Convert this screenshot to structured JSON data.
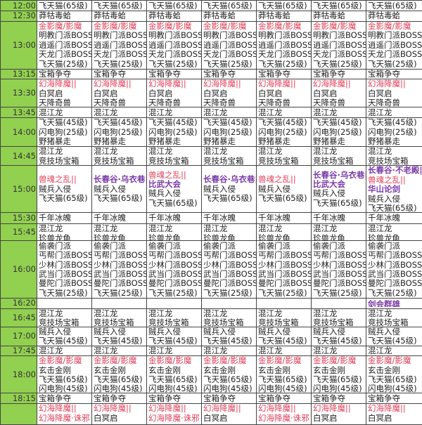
{
  "colors": {
    "time_column": "#92d050",
    "red": "#e0405a",
    "purple": "#7a3aa8"
  },
  "rows": [
    {
      "time": "12:00",
      "cells": [
        [
          "飞天猫(65级)"
        ],
        [
          "飞天猫(65级)"
        ],
        [
          "飞天猫(65级)"
        ],
        [
          "飞天猫(65级)"
        ],
        [
          "飞天猫(65级)"
        ],
        [
          "飞天猫(65级)"
        ],
        [
          "飞天猫(65级)"
        ]
      ]
    },
    {
      "time": "12:30",
      "cells": [
        [
          "莽牯毒蛤"
        ],
        [
          "莽牯毒蛤"
        ],
        [
          "莽牯毒蛤"
        ],
        [
          "莽牯毒蛤"
        ],
        [
          "莽牯毒蛤"
        ],
        [
          "莽牯毒蛤"
        ],
        [
          "莽牯毒蛤"
        ]
      ]
    },
    {
      "time": "13:00",
      "cells": [
        [
          {
            "t": "金影魔/影魔",
            "c": "red"
          },
          "明教门派BOSS",
          "逍遥门派BOSS",
          "天龙门派BOSS",
          "飞天猫(25级)"
        ],
        [
          {
            "t": "金影魔/影魔",
            "c": "red"
          },
          "明教门派BOSS",
          "逍遥门派BOSS",
          "天龙门派BOSS",
          "飞天猫(25级)"
        ],
        [
          {
            "t": "金影魔/影魔",
            "c": "red"
          },
          "明教门派BOSS",
          "逍遥门派BOSS",
          "天龙门派BOSS",
          "飞天猫(25级)"
        ],
        [
          {
            "t": "金影魔/影魔",
            "c": "red"
          },
          "明教门派BOSS",
          "逍遥门派BOSS",
          "天龙门派BOSS",
          "飞天猫(25级)"
        ],
        [
          {
            "t": "金影魔/影魔",
            "c": "red"
          },
          "明教门派BOSS",
          "逍遥门派BOSS",
          "天龙门派BOSS",
          "飞天猫(25级)"
        ],
        [
          {
            "t": "金影魔/影魔",
            "c": "red"
          },
          "明教门派BOSS",
          "逍遥门派BOSS",
          "天龙门派BOSS",
          "飞天猫(25级)"
        ],
        [
          {
            "t": "金影魔/影魔",
            "c": "red"
          },
          "明教门派BOSS",
          "逍遥门派BOSS",
          "天龙门派BOSS",
          "飞天猫(25级)"
        ]
      ]
    },
    {
      "time": "13:15",
      "cells": [
        [
          "宝箱争夺"
        ],
        [
          "宝箱争夺"
        ],
        [
          "宝箱争夺"
        ],
        [
          "宝箱争夺"
        ],
        [
          "宝箱争夺"
        ],
        [
          "宝箱争夺"
        ],
        [
          "宝箱争夺"
        ]
      ]
    },
    {
      "time": "13:30",
      "cells": [
        [
          {
            "t": "幻海降魔||",
            "c": "red"
          },
          "白冥启",
          "天降奇兽"
        ],
        [
          {
            "t": "幻海降魔||",
            "c": "red"
          },
          "白冥启",
          "天降奇兽"
        ],
        [
          {
            "t": "幻海降魔||",
            "c": "red"
          },
          "白冥启",
          "天降奇兽"
        ],
        [
          {
            "t": "幻海降魔||",
            "c": "red"
          },
          "白冥启",
          "天降奇兽"
        ],
        [
          {
            "t": "幻海降魔||",
            "c": "red"
          },
          "白冥启",
          "天降奇兽"
        ],
        [
          {
            "t": "幻海降魔||",
            "c": "red"
          },
          "白冥启",
          "天降奇兽"
        ],
        [
          {
            "t": "幻海降魔||",
            "c": "red"
          },
          "白冥启",
          "天降奇兽"
        ]
      ]
    },
    {
      "time": "13:45",
      "cells": [
        [
          "混江龙"
        ],
        [
          "混江龙"
        ],
        [
          "混江龙"
        ],
        [
          "混江龙"
        ],
        [
          "混江龙"
        ],
        [
          "混江龙"
        ],
        [
          "混江龙"
        ]
      ]
    },
    {
      "time": "14:00",
      "cells": [
        [
          "飞天猫(45级)",
          "闪电狗(25级)",
          "野猪暴走"
        ],
        [
          "飞天猫(45级)",
          "闪电狗(25级)",
          "野猪暴走"
        ],
        [
          "飞天猫(45级)",
          "闪电狗(25级)",
          "野猪暴走"
        ],
        [
          "飞天猫(45级)",
          "闪电狗(25级)",
          "野猪暴走"
        ],
        [
          "飞天猫(45级)",
          "闪电狗(25级)",
          "野猪暴走"
        ],
        [
          "飞天猫(45级)",
          "闪电狗(25级)",
          "野猪暴走"
        ],
        [
          "飞天猫(45级)",
          "闪电狗(25级)",
          "野猪暴走"
        ]
      ]
    },
    {
      "time": "14:45",
      "cells": [
        [
          "混江龙",
          "竞技场宝箱"
        ],
        [
          "混江龙",
          "竞技场宝箱"
        ],
        [
          "混江龙",
          "竞技场宝箱"
        ],
        [
          "混江龙",
          "竞技场宝箱"
        ],
        [
          "混江龙",
          "竞技场宝箱"
        ],
        [
          "混江龙",
          "竞技场宝箱"
        ],
        [
          "混江龙",
          "竞技场宝箱"
        ]
      ]
    },
    {
      "time": "15:00",
      "cells": [
        [
          {
            "t": "兽魂之乱||",
            "c": "red"
          },
          "贼兵入侵",
          "飞天猫(65级)"
        ],
        [
          {
            "t": "长春谷·乌衣巷||",
            "c": "purple"
          },
          "贼兵入侵",
          "飞天猫(65级)"
        ],
        [
          {
            "t": "兽魂之乱||",
            "c": "red"
          },
          {
            "t": "比武大会",
            "c": "purple"
          },
          "贼兵入侵",
          "飞天猫(65级)"
        ],
        [
          {
            "t": "长春谷·乌衣巷||",
            "c": "purple"
          },
          "贼兵入侵",
          "飞天猫(65级)"
        ],
        [
          {
            "t": "兽魂之乱||",
            "c": "red"
          },
          "贼兵入侵",
          "飞天猫(65级)"
        ],
        [
          {
            "t": "长春谷·乌衣巷||",
            "c": "purple"
          },
          {
            "t": "比武大会",
            "c": "purple"
          },
          "贼兵入侵",
          "飞天猫(65级)"
        ],
        [
          {
            "t": "长春谷·不老殿||",
            "c": "purple"
          },
          {
            "t": "兽魂之乱||",
            "c": "red"
          },
          {
            "t": "华山论剑",
            "c": "purple"
          },
          "贼兵入侵",
          "飞天猫(65级)"
        ]
      ]
    },
    {
      "time": "15:30",
      "cells": [
        [
          "千年冰魄"
        ],
        [
          "千年冰魄"
        ],
        [
          "千年冰魄"
        ],
        [
          "千年冰魄"
        ],
        [
          "千年冰魄"
        ],
        [
          "千年冰魄"
        ],
        [
          "千年冰魄"
        ]
      ]
    },
    {
      "time": "15:45",
      "cells": [
        [
          "混江龙",
          "珍兽龙龟"
        ],
        [
          "混江龙",
          "珍兽龙龟"
        ],
        [
          "混江龙",
          "珍兽龙龟"
        ],
        [
          "混江龙",
          "珍兽龙龟"
        ],
        [
          "混江龙",
          "珍兽龙龟"
        ],
        [
          "混江龙",
          "珍兽龙龟"
        ],
        [
          "混江龙",
          "珍兽龙龟"
        ]
      ]
    },
    {
      "time": "16:00",
      "cells": [
        [
          "偷袭门派",
          "丐帮门派BOSS",
          "少林门派BOSS",
          "武当门派BOSS",
          "曼陀门派BOSS",
          "飞天猫(25级)"
        ],
        [
          "偷袭门派",
          "丐帮门派BOSS",
          "少林门派BOSS",
          "武当门派BOSS",
          "曼陀门派BOSS",
          "飞天猫(25级)"
        ],
        [
          "偷袭门派",
          "丐帮门派BOSS",
          "少林门派BOSS",
          "武当门派BOSS",
          "曼陀门派BOSS",
          "飞天猫(25级)"
        ],
        [
          "偷袭门派",
          "丐帮门派BOSS",
          "少林门派BOSS",
          "武当门派BOSS",
          "曼陀门派BOSS",
          "飞天猫(25级)"
        ],
        [
          "偷袭门派",
          "丐帮门派BOSS",
          "少林门派BOSS",
          "武当门派BOSS",
          "曼陀门派BOSS",
          "飞天猫(25级)"
        ],
        [
          "偷袭门派",
          "丐帮门派BOSS",
          "少林门派BOSS",
          "武当门派BOSS",
          "曼陀门派BOSS",
          "飞天猫(25级)"
        ],
        [
          "偷袭门派",
          "丐帮门派BOSS",
          "少林门派BOSS",
          "武当门派BOSS",
          "曼陀门派BOSS",
          "飞天猫(25级)"
        ]
      ]
    },
    {
      "time": "16:20",
      "cells": [
        [],
        [],
        [],
        [],
        [],
        [],
        [
          {
            "t": "剑会群雄",
            "c": "purple"
          }
        ]
      ]
    },
    {
      "time": "16:45",
      "cells": [
        [
          "混江龙",
          "竞技场宝箱"
        ],
        [
          "混江龙",
          "竞技场宝箱"
        ],
        [
          "混江龙",
          "竞技场宝箱"
        ],
        [
          "混江龙",
          "竞技场宝箱"
        ],
        [
          "混江龙",
          "竞技场宝箱"
        ],
        [
          "混江龙",
          "竞技场宝箱"
        ],
        [
          "混江龙",
          "竞技场宝箱"
        ]
      ]
    },
    {
      "time": "17:00",
      "cells": [
        [
          "贼兵入侵",
          "飞天猫(45级)"
        ],
        [
          "贼兵入侵",
          "飞天猫(45级)"
        ],
        [
          "贼兵入侵",
          "飞天猫(45级)"
        ],
        [
          "贼兵入侵",
          "飞天猫(45级)"
        ],
        [
          "贼兵入侵",
          "飞天猫(45级)"
        ],
        [
          "贼兵入侵",
          "飞天猫(45级)"
        ],
        [
          "贼兵入侵",
          "飞天猫(45级)"
        ]
      ]
    },
    {
      "time": "17:45",
      "cells": [
        [
          "混江龙"
        ],
        [
          "混江龙"
        ],
        [
          "混江龙"
        ],
        [
          "混江龙"
        ],
        [
          "混江龙"
        ],
        [
          "混江龙"
        ],
        [
          "混江龙"
        ]
      ]
    },
    {
      "time": "18:00",
      "cells": [
        [
          {
            "t": "金影魔/影魔",
            "c": "red"
          },
          "玄击金刚",
          "飞天猫(65级)",
          "闪电狗(45级)"
        ],
        [
          {
            "t": "金影魔/影魔",
            "c": "red"
          },
          "玄击金刚",
          "飞天猫(65级)",
          "闪电狗(45级)"
        ],
        [
          {
            "t": "金影魔/影魔",
            "c": "red"
          },
          "玄击金刚",
          "飞天猫(65级)",
          "闪电狗(45级)"
        ],
        [
          {
            "t": "金影魔/影魔",
            "c": "red"
          },
          "玄击金刚",
          "飞天猫(65级)",
          "闪电狗(45级)"
        ],
        [
          {
            "t": "金影魔/影魔",
            "c": "red"
          },
          "玄击金刚",
          "飞天猫(65级)",
          "闪电狗(45级)"
        ],
        [
          {
            "t": "金影魔/影魔",
            "c": "red"
          },
          "玄击金刚",
          "飞天猫(65级)",
          "闪电狗(45级)"
        ],
        [
          {
            "t": "金影魔/影魔",
            "c": "red"
          },
          "玄击金刚",
          "飞天猫(65级)",
          "闪电狗(45级)"
        ]
      ]
    },
    {
      "time": "18:15",
      "cells": [
        [
          "宝箱争夺"
        ],
        [
          "宝箱争夺"
        ],
        [
          "宝箱争夺"
        ],
        [
          "宝箱争夺"
        ],
        [
          "宝箱争夺"
        ],
        [
          "宝箱争夺"
        ],
        [
          "宝箱争夺"
        ]
      ]
    },
    {
      "time": "",
      "cells": [
        [
          {
            "t": "幻海降魔||",
            "c": "red"
          },
          {
            "t": "幻海降魔·诛邪",
            "c": "red"
          }
        ],
        [
          {
            "t": "幻海降魔||",
            "c": "red"
          },
          "白冥启"
        ],
        [
          {
            "t": "幻海降魔||",
            "c": "red"
          },
          {
            "t": "幻海降魔·诛邪",
            "c": "red"
          }
        ],
        [
          {
            "t": "幻海降魔||",
            "c": "red"
          },
          "白冥启"
        ],
        [
          {
            "t": "幻海降魔||",
            "c": "red"
          },
          {
            "t": "幻海降魔·诛邪",
            "c": "red"
          }
        ],
        [
          {
            "t": "幻海降魔||",
            "c": "red"
          },
          "白冥启"
        ],
        [
          {
            "t": "幻海降魔||",
            "c": "red"
          },
          "白冥启"
        ]
      ]
    }
  ]
}
